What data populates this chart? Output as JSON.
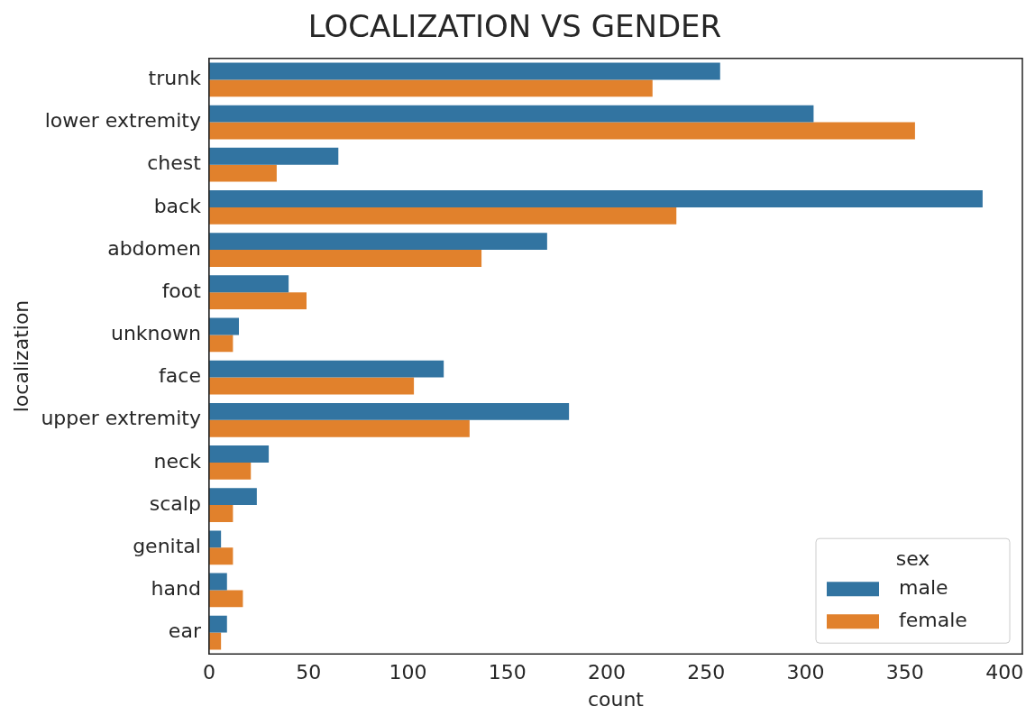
{
  "chart_data": {
    "type": "bar",
    "orientation": "horizontal",
    "title": "LOCALIZATION VS GENDER",
    "xlabel": "count",
    "ylabel": "localization",
    "legend_title": "sex",
    "legend": "bottom right",
    "grid": false,
    "categories": [
      "trunk",
      "lower extremity",
      "chest",
      "back",
      "abdomen",
      "foot",
      "unknown",
      "face",
      "upper extremity",
      "neck",
      "scalp",
      "genital",
      "hand",
      "ear"
    ],
    "series": [
      {
        "name": "male",
        "color": "#3274a1",
        "values": [
          257,
          304,
          65,
          389,
          170,
          40,
          15,
          118,
          181,
          30,
          24,
          6,
          9,
          9
        ]
      },
      {
        "name": "female",
        "color": "#e1812c",
        "values": [
          223,
          355,
          34,
          235,
          137,
          49,
          12,
          103,
          131,
          21,
          12,
          12,
          17,
          6
        ]
      }
    ],
    "xlim": [
      0,
      409
    ],
    "xticks": [
      0,
      50,
      100,
      150,
      200,
      250,
      300,
      350,
      400
    ]
  }
}
